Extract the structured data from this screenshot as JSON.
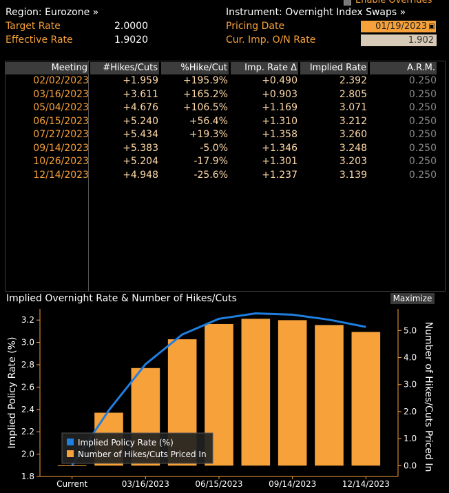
{
  "header": {
    "enable_overrides": "Enable Overrides",
    "region": "Region: Eurozone »",
    "instrument": "Instrument: Overnight Index Swaps »",
    "target_rate_label": "Target Rate",
    "target_rate_value": "2.0000",
    "effective_rate_label": "Effective Rate",
    "effective_rate_value": "1.9020",
    "pricing_date_label": "Pricing Date",
    "pricing_date_value": "01/19/2023",
    "cur_imp_label": "Cur. Imp. O/N Rate",
    "cur_imp_value": "1.902"
  },
  "table": {
    "columns": [
      "Meeting",
      "#Hikes/Cuts",
      "%Hike/Cut",
      "Imp. Rate Δ",
      "Implied Rate",
      "A.R.M."
    ],
    "rows": [
      [
        "02/02/2023",
        "+1.959",
        "+195.9%",
        "+0.490",
        "2.392",
        "0.250"
      ],
      [
        "03/16/2023",
        "+3.611",
        "+165.2%",
        "+0.903",
        "2.805",
        "0.250"
      ],
      [
        "05/04/2023",
        "+4.676",
        "+106.5%",
        "+1.169",
        "3.071",
        "0.250"
      ],
      [
        "06/15/2023",
        "+5.240",
        "+56.4%",
        "+1.310",
        "3.212",
        "0.250"
      ],
      [
        "07/27/2023",
        "+5.434",
        "+19.3%",
        "+1.358",
        "3.260",
        "0.250"
      ],
      [
        "09/14/2023",
        "+5.383",
        "-5.0%",
        "+1.346",
        "3.248",
        "0.250"
      ],
      [
        "10/26/2023",
        "+5.204",
        "-17.9%",
        "+1.301",
        "3.203",
        "0.250"
      ],
      [
        "12/14/2023",
        "+4.948",
        "-25.6%",
        "+1.237",
        "3.139",
        "0.250"
      ]
    ]
  },
  "chart": {
    "title": "Implied Overnight Rate & Number of Hikes/Cuts",
    "maximize_label": "Maximize",
    "left_axis_label": "Implied Policy Rate (%)",
    "right_axis_label": "Number of Hikes/Cuts Priced In",
    "legend": [
      "Implied Policy Rate (%)",
      "Number of Hikes/Cuts Priced In"
    ],
    "colors": {
      "line": "#1f7fe0",
      "bars": "#f7a13a",
      "axis": "#f7a13a"
    }
  },
  "chart_data": {
    "type": "bar",
    "categories": [
      "Current",
      "02/02/2023",
      "03/16/2023",
      "05/04/2023",
      "06/15/2023",
      "07/27/2023",
      "09/14/2023",
      "10/26/2023",
      "12/14/2023"
    ],
    "x_tick_labels": [
      "Current",
      "03/16/2023",
      "06/15/2023",
      "09/14/2023",
      "12/14/2023"
    ],
    "series": [
      {
        "name": "Number of Hikes/Cuts Priced In",
        "axis": "right",
        "values": [
          0.0,
          1.959,
          3.611,
          4.676,
          5.24,
          5.434,
          5.383,
          5.204,
          4.948
        ]
      },
      {
        "name": "Implied Policy Rate (%)",
        "axis": "left",
        "type": "line",
        "values": [
          1.902,
          2.392,
          2.805,
          3.071,
          3.212,
          3.26,
          3.248,
          3.203,
          3.139
        ]
      }
    ],
    "left_ylim": [
      1.8,
      3.3
    ],
    "left_ticks": [
      "1.8",
      "2.0",
      "2.2",
      "2.4",
      "2.6",
      "2.8",
      "3.0",
      "3.2"
    ],
    "right_ylim": [
      -0.4,
      5.8
    ],
    "right_ticks": [
      "0.0",
      "1.0",
      "2.0",
      "3.0",
      "4.0",
      "5.0"
    ],
    "legend_position": "bottom-left"
  }
}
